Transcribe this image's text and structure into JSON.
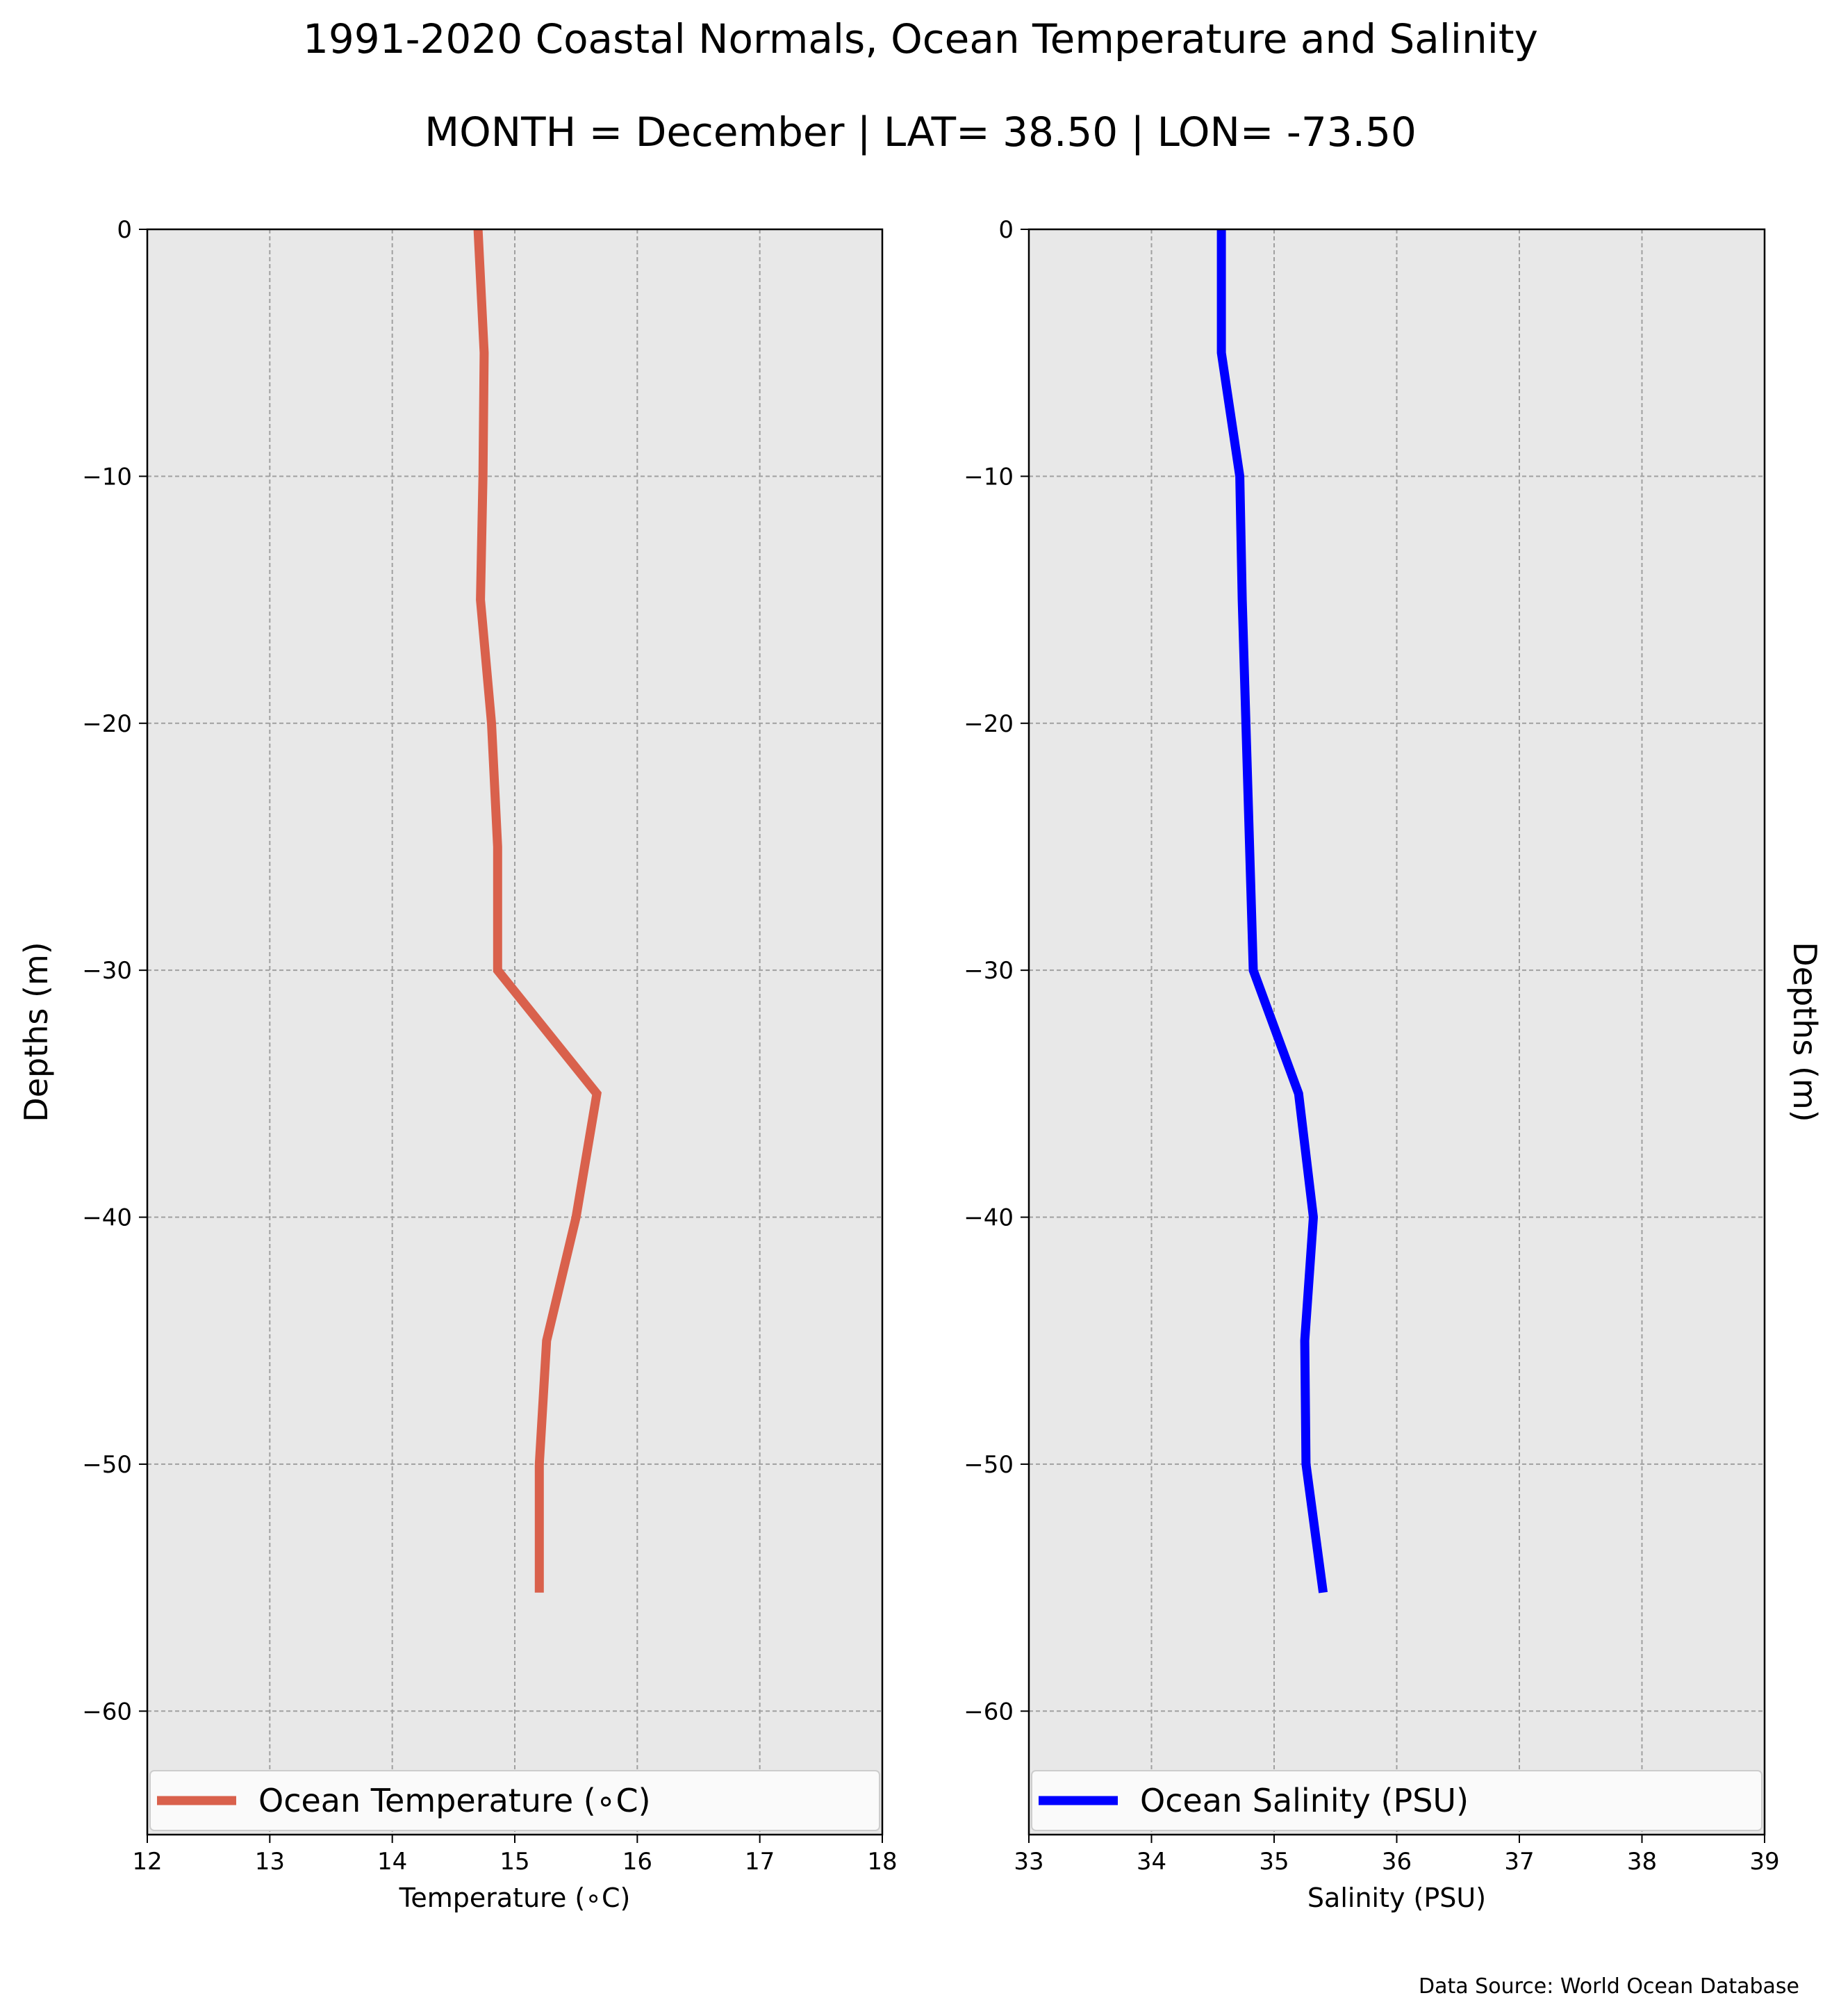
{
  "figure": {
    "title": "1991-2020 Coastal Normals, Ocean Temperature and Salinity",
    "subtitle": "MONTH = December | LAT= 38.50 | LON= -73.50",
    "source": "Data Source: World Ocean Database"
  },
  "chart_data": [
    {
      "type": "line",
      "xlabel": "Temperature (∘C)",
      "ylabel": "Depths (m)",
      "ylabel_side": "left",
      "xlim": [
        12,
        18
      ],
      "ylim": [
        -65,
        0
      ],
      "xticks": [
        12,
        13,
        14,
        15,
        16,
        17,
        18
      ],
      "yticks": [
        0,
        -10,
        -20,
        -30,
        -40,
        -50,
        -60
      ],
      "ytick_labels": [
        "0",
        "−10",
        "−20",
        "−30",
        "−40",
        "−50",
        "−60"
      ],
      "grid": true,
      "legend_position": "bottom",
      "series": [
        {
          "name": "Ocean Temperature (∘C)",
          "color": "#d9614c",
          "x": [
            14.7,
            14.75,
            14.74,
            14.72,
            14.81,
            14.86,
            14.86,
            15.67,
            15.5,
            15.26,
            15.2,
            15.2
          ],
          "y": [
            0,
            -5,
            -10,
            -15,
            -20,
            -25,
            -30,
            -35,
            -40,
            -45,
            -50,
            -55.2
          ]
        }
      ]
    },
    {
      "type": "line",
      "xlabel": "Salinity (PSU)",
      "ylabel": "Depths (m)",
      "ylabel_side": "right",
      "xlim": [
        33,
        39
      ],
      "ylim": [
        -65,
        0
      ],
      "xticks": [
        33,
        34,
        35,
        36,
        37,
        38,
        39
      ],
      "yticks": [
        0,
        -10,
        -20,
        -30,
        -40,
        -50,
        -60
      ],
      "ytick_labels": [
        "0",
        "−10",
        "−20",
        "−30",
        "−40",
        "−50",
        "−60"
      ],
      "grid": true,
      "legend_position": "bottom",
      "series": [
        {
          "name": "Ocean Salinity (PSU)",
          "color": "#0000ff",
          "x": [
            34.57,
            34.57,
            34.72,
            34.74,
            34.77,
            34.8,
            34.83,
            35.2,
            35.32,
            35.25,
            35.26,
            35.4
          ],
          "y": [
            0,
            -5,
            -10,
            -15,
            -20,
            -25,
            -30,
            -35,
            -40,
            -45,
            -50,
            -55.2
          ]
        }
      ]
    }
  ]
}
